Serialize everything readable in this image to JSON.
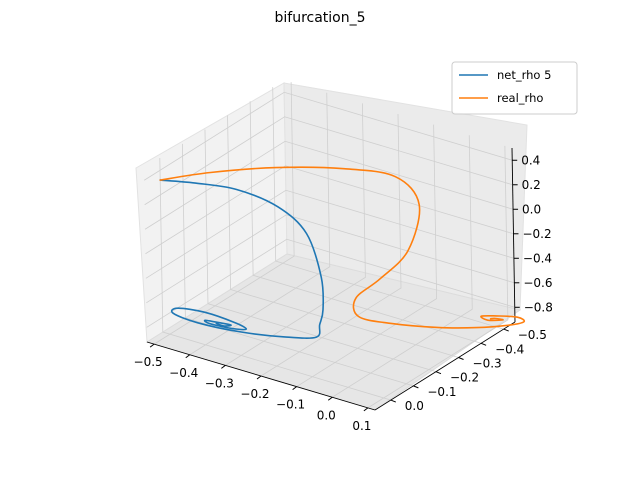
{
  "chart_data": {
    "type": "line",
    "projection": "3d",
    "title": "bifurcation_5",
    "xlabel": "",
    "ylabel": "",
    "zlabel": "",
    "x_ticks": [
      "−0.5",
      "−0.4",
      "−0.3",
      "−0.2",
      "−0.1",
      "0.0",
      "0.1"
    ],
    "y_ticks": [
      "−0.5",
      "−0.4",
      "−0.3",
      "−0.2",
      "−0.1",
      "0.0"
    ],
    "z_ticks": [
      "−0.8",
      "−0.6",
      "−0.4",
      "−0.2",
      "0.0",
      "0.2",
      "0.4"
    ],
    "xlim": [
      -0.52,
      0.12
    ],
    "ylim": [
      -0.55,
      0.07
    ],
    "zlim": [
      -0.92,
      0.5
    ],
    "grid": true,
    "legend_position": "top-right",
    "series": [
      {
        "name": "net_rho 5",
        "color": "#1f77b4",
        "points": [
          [
            -0.52,
            0.0,
            0.32
          ],
          [
            -0.44,
            -0.03,
            0.33
          ],
          [
            -0.35,
            -0.07,
            0.31
          ],
          [
            -0.26,
            -0.11,
            0.2
          ],
          [
            -0.2,
            -0.14,
            0.0
          ],
          [
            -0.17,
            -0.155,
            -0.35
          ],
          [
            -0.17,
            -0.16,
            -0.62
          ],
          [
            -0.18,
            -0.16,
            -0.75
          ],
          [
            -0.19,
            -0.16,
            -0.86
          ],
          [
            -0.26,
            -0.13,
            -0.885
          ],
          [
            -0.35,
            -0.08,
            -0.865
          ],
          [
            -0.44,
            -0.03,
            -0.81
          ],
          [
            -0.49,
            0.0,
            -0.74
          ],
          [
            -0.47,
            0.01,
            -0.67
          ],
          [
            -0.4,
            0.0,
            -0.655
          ],
          [
            -0.33,
            -0.02,
            -0.7
          ],
          [
            -0.31,
            -0.04,
            -0.76
          ],
          [
            -0.35,
            -0.04,
            -0.79
          ],
          [
            -0.4,
            -0.02,
            -0.77
          ],
          [
            -0.4,
            0.0,
            -0.72
          ],
          [
            -0.36,
            0.0,
            -0.705
          ],
          [
            -0.34,
            -0.02,
            -0.73
          ],
          [
            -0.36,
            -0.02,
            -0.755
          ],
          [
            -0.375,
            -0.01,
            -0.735
          ]
        ]
      },
      {
        "name": "real_rho",
        "color": "#ff7f0e",
        "points": [
          [
            -0.52,
            0.0,
            0.32
          ],
          [
            -0.41,
            -0.05,
            0.42
          ],
          [
            -0.27,
            -0.12,
            0.5
          ],
          [
            -0.13,
            -0.2,
            0.52
          ],
          [
            -0.03,
            -0.27,
            0.46
          ],
          [
            0.01,
            -0.31,
            0.22
          ],
          [
            -0.03,
            -0.32,
            -0.2
          ],
          [
            -0.11,
            -0.32,
            -0.5
          ],
          [
            -0.18,
            -0.32,
            -0.72
          ],
          [
            -0.18,
            -0.33,
            -0.88
          ],
          [
            -0.11,
            -0.36,
            -0.91
          ],
          [
            -0.01,
            -0.41,
            -0.915
          ],
          [
            0.07,
            -0.46,
            -0.905
          ],
          [
            0.13,
            -0.51,
            -0.89
          ],
          [
            0.155,
            -0.535,
            -0.87
          ],
          [
            0.14,
            -0.53,
            -0.84
          ],
          [
            0.1,
            -0.5,
            -0.83
          ],
          [
            0.07,
            -0.48,
            -0.835
          ],
          [
            0.085,
            -0.485,
            -0.86
          ],
          [
            0.115,
            -0.505,
            -0.855
          ],
          [
            0.1,
            -0.495,
            -0.845
          ],
          [
            0.09,
            -0.49,
            -0.85
          ]
        ]
      }
    ]
  }
}
